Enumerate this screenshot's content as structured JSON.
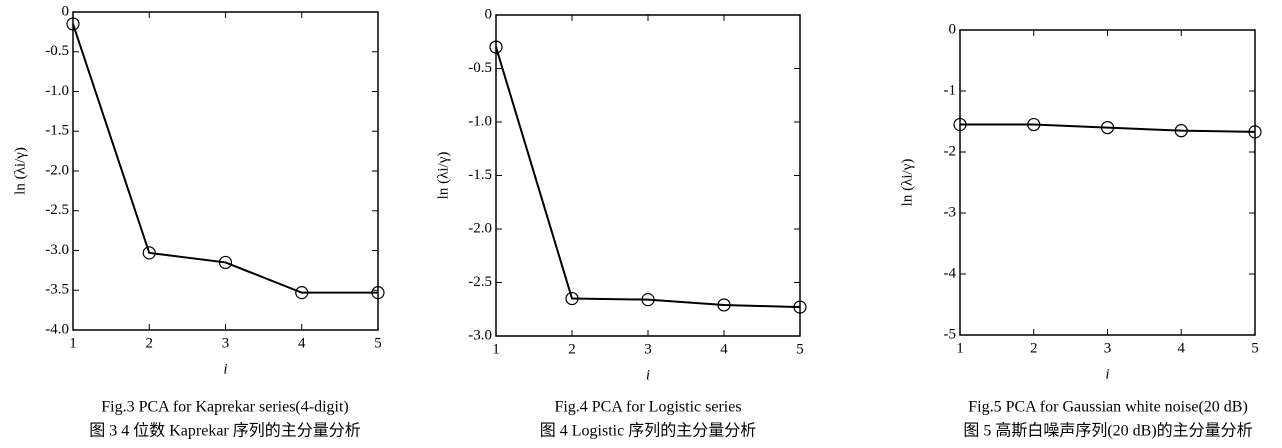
{
  "chart_data": [
    {
      "type": "line",
      "title": "Fig.3 PCA for Kaprekar series(4-digit)",
      "subtitle": "图 3 4 位数 Kaprekar 序列的主分量分析",
      "x_label": "i",
      "y_label": "ln (λi/γ)",
      "x": [
        1,
        2,
        3,
        4,
        5
      ],
      "values": [
        -0.15,
        -3.03,
        -3.15,
        -3.53,
        -3.53
      ],
      "color": "#000000",
      "xlim": [
        1,
        5
      ],
      "xticks": [
        1,
        2,
        3,
        4,
        5
      ],
      "ylim": [
        -4,
        0
      ],
      "yticks": [
        0,
        -0.5,
        {
          "value": -1,
          "label": "-1.0"
        },
        -1.5,
        {
          "value": -2,
          "label": "-2.0"
        },
        -2.5,
        {
          "value": -3,
          "label": "-3.0"
        },
        -3.5,
        {
          "value": -4,
          "label": "-4.0"
        }
      ]
    },
    {
      "type": "line",
      "title": "Fig.4 PCA for Logistic series",
      "subtitle": "图 4 Logistic 序列的主分量分析",
      "x_label": "i",
      "y_label": "ln (λi/γ)",
      "x": [
        1,
        2,
        3,
        4,
        5
      ],
      "values": [
        -0.3,
        -2.65,
        -2.66,
        -2.71,
        -2.73
      ],
      "color": "#000000",
      "xlim": [
        1,
        5
      ],
      "xticks": [
        1,
        2,
        3,
        4,
        5
      ],
      "ylim": [
        -3,
        0
      ],
      "yticks": [
        0,
        -0.5,
        {
          "value": -1,
          "label": "-1.0"
        },
        -1.5,
        {
          "value": -2,
          "label": "-2.0"
        },
        -2.5,
        {
          "value": -3,
          "label": "-3.0"
        }
      ]
    },
    {
      "type": "line",
      "title": "Fig.5 PCA for Gaussian white noise(20 dB)",
      "subtitle": "图 5 高斯白噪声序列(20 dB)的主分量分析",
      "x_label": "i",
      "y_label": "ln (λi/γ)",
      "x": [
        1,
        2,
        3,
        4,
        5
      ],
      "values": [
        -1.55,
        -1.55,
        -1.6,
        -1.65,
        -1.67
      ],
      "color": "#000000",
      "xlim": [
        1,
        5
      ],
      "xticks": [
        1,
        2,
        3,
        4,
        5
      ],
      "ylim": [
        -5,
        0
      ],
      "yticks": [
        0,
        -1,
        -2,
        -3,
        -4,
        -5
      ]
    }
  ]
}
